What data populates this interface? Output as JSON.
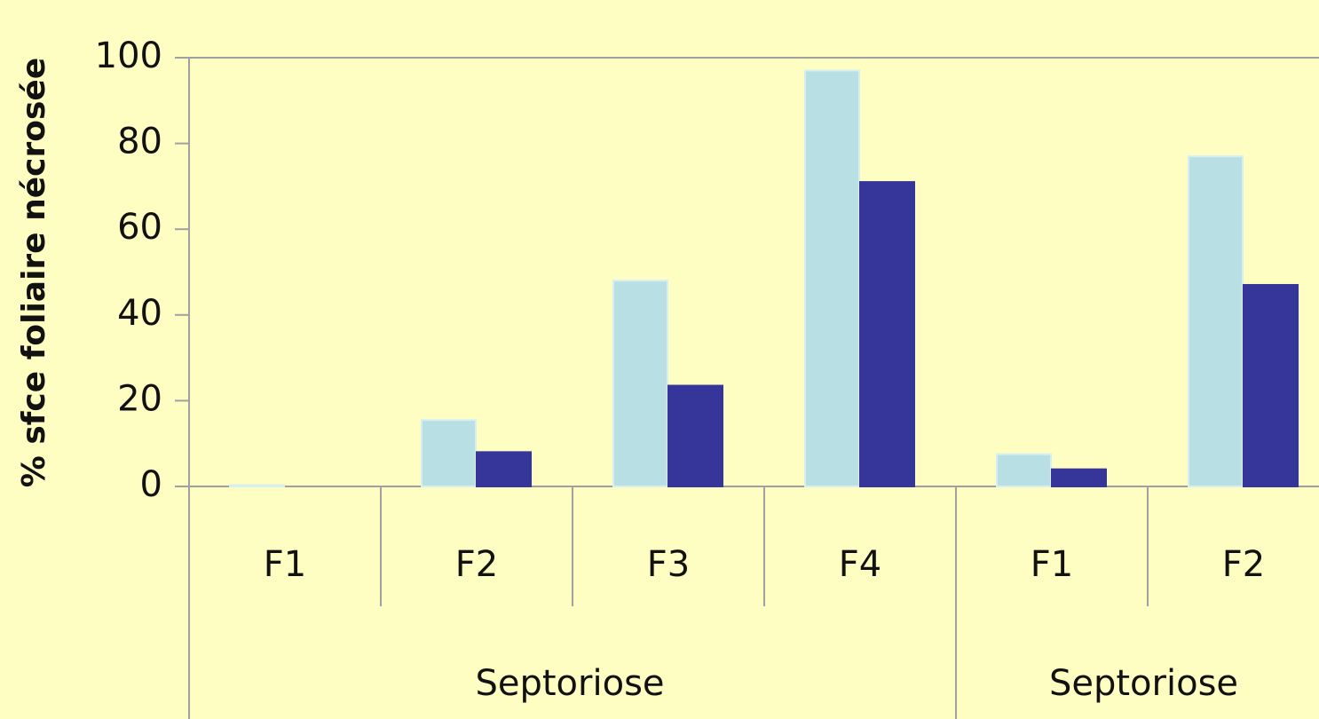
{
  "chart_data": {
    "type": "bar",
    "y_label": "% sfce foliaire nécrosée",
    "categories": [
      "F1",
      "F2",
      "F3",
      "F4",
      "F1",
      "F2"
    ],
    "groups": [
      {
        "label": "Septoriose",
        "count": 4
      },
      {
        "label": "Septoriose",
        "count": 2
      }
    ],
    "series": [
      {
        "color": "#b8e0e4",
        "values": [
          0.3,
          15.5,
          48,
          97,
          7.5,
          77
        ]
      },
      {
        "color": "#36359a",
        "values": [
          0,
          8,
          23.5,
          71,
          4,
          47
        ]
      }
    ],
    "ylim": [
      0,
      100
    ],
    "yticks": [
      0,
      20,
      40,
      60,
      80,
      100
    ],
    "grid": false
  }
}
